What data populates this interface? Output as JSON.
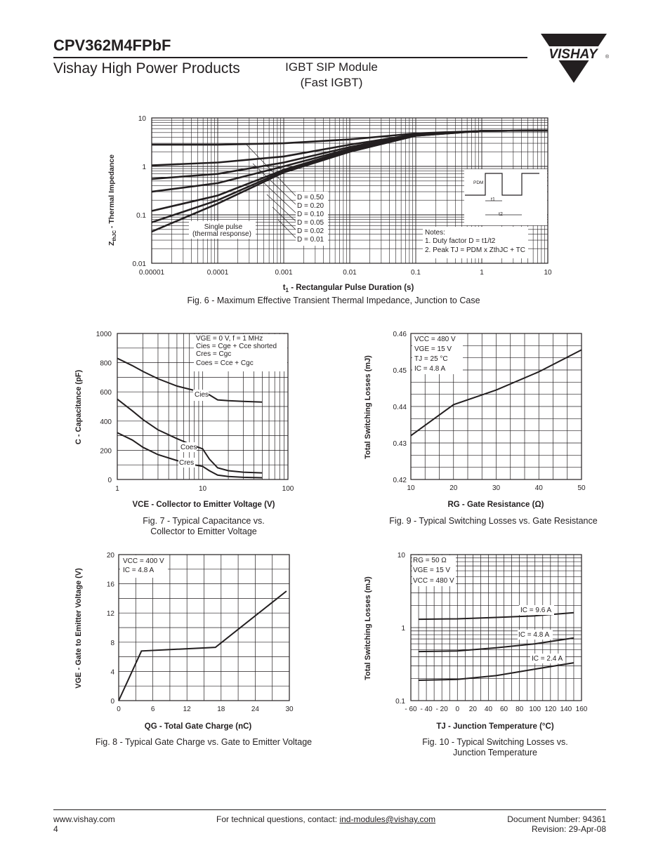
{
  "header": {
    "part_number": "CPV362M4FPbF",
    "company_line": "Vishay High Power Products",
    "module_line1": "IGBT SIP Module",
    "module_line2": "(Fast IGBT)",
    "logo_text": "VISHAY"
  },
  "fig6": {
    "caption": "Fig. 6 - Maximum Effective Transient Thermal Impedance, Junction to Case",
    "xlabel_t": "t",
    "xlabel_sub": "1",
    "xlabel_rest": " - Rectangular Pulse Duration (s)",
    "ylabel_z": "Z",
    "ylabel_sub": "thJC",
    "ylabel_rest": " - Thermal Impedance",
    "x_ticks": [
      "0.00001",
      "0.0001",
      "0.001",
      "0.01",
      "0.1",
      "1",
      "10"
    ],
    "y_ticks": [
      "0.01",
      "0.1",
      "1",
      "10"
    ],
    "duty_labels": [
      "D = 0.50",
      "D = 0.20",
      "D = 0.10",
      "D = 0.05",
      "D = 0.02",
      "D = 0.01"
    ],
    "single_pulse_1": "Single pulse",
    "single_pulse_2": "(thermal response)",
    "notes_title": "Notes:",
    "note1": "1. Duty factor D = t1/t2",
    "note2": "2. Peak TJ = PDM x ZthJC + TC",
    "inset_pdm": "PDM",
    "inset_t1": "t1",
    "inset_t2": "t2"
  },
  "fig7": {
    "caption_line1": "Fig. 7 - Typical Capacitance vs.",
    "caption_line2": "Collector to Emitter Voltage",
    "xlabel": "VCE - Collector to Emitter Voltage (V)",
    "ylabel": "C - Capacitance (pF)",
    "x_ticks": [
      "1",
      "10",
      "100"
    ],
    "y_ticks": [
      "0",
      "200",
      "400",
      "600",
      "800",
      "1000"
    ],
    "cond1": "VGE = 0 V, f = 1 MHz",
    "cond2": "Cies = Cge + Cce  shorted",
    "cond3": "Cres = Cgc",
    "cond4": "Coes = Cce + Cgc",
    "lbl_cies": "Cies",
    "lbl_coes": "Coes",
    "lbl_cres": "Cres"
  },
  "fig9": {
    "caption": "Fig. 9 - Typical Switching Losses vs. Gate Resistance",
    "xlabel": "RG - Gate Resistance (Ω)",
    "ylabel": "Total Switching Losses (mJ)",
    "x_ticks": [
      "10",
      "20",
      "30",
      "40",
      "50"
    ],
    "y_ticks": [
      "0.42",
      "0.43",
      "0.44",
      "0.45",
      "0.46"
    ],
    "cond1": "VCC = 480 V",
    "cond2": "VGE = 15 V",
    "cond3": "TJ = 25 °C",
    "cond4": "IC = 4.8 A"
  },
  "fig8": {
    "caption": "Fig. 8 - Typical Gate Charge vs. Gate to Emitter Voltage",
    "xlabel": "QG - Total Gate Charge (nC)",
    "ylabel": "VGE - Gate to Emitter Voltage (V)",
    "x_ticks": [
      "0",
      "6",
      "12",
      "18",
      "24",
      "30"
    ],
    "y_ticks": [
      "0",
      "4",
      "8",
      "12",
      "16",
      "20"
    ],
    "cond1": "VCC = 400 V",
    "cond2": "IC = 4.8 A"
  },
  "fig10": {
    "caption_line1": "Fig. 10 - Typical Switching Losses vs.",
    "caption_line2": "Junction Temperature",
    "xlabel": "TJ - Junction Temperature (°C)",
    "ylabel": "Total Switching Losses (mJ)",
    "x_ticks": [
      "- 60",
      "- 40",
      "- 20",
      "0",
      "20",
      "40",
      "60",
      "80",
      "100",
      "120",
      "140",
      "160"
    ],
    "y_ticks": [
      "0.1",
      "1",
      "10"
    ],
    "cond1": "RG = 50 Ω",
    "cond2": "VGE = 15 V",
    "cond3": "VCC = 480 V",
    "lbl_96": "IC = 9.6 A",
    "lbl_48": "IC = 4.8 A",
    "lbl_24": "IC = 2.4 A"
  },
  "footer": {
    "website": "www.vishay.com",
    "page": "4",
    "contact_prefix": "For technical questions, contact: ",
    "contact_email": "ind-modules@vishay.com",
    "doc_number": "Document Number: 94361",
    "revision": "Revision: 29-Apr-08"
  },
  "chart_data": [
    {
      "type": "line",
      "title": "Fig. 6 - Maximum Effective Transient Thermal Impedance, Junction to Case",
      "xlabel": "t1 - Rectangular Pulse Duration (s)",
      "ylabel": "ZthJC - Thermal Impedance",
      "xscale": "log",
      "yscale": "log",
      "xlim": [
        1e-05,
        10
      ],
      "ylim": [
        0.01,
        10
      ],
      "grid": true,
      "series": [
        {
          "name": "D = 0.50",
          "x": [
            1e-05,
            0.0001,
            0.001,
            0.01,
            0.1,
            1,
            10
          ],
          "y": [
            2.8,
            2.8,
            3.0,
            3.6,
            4.8,
            5.4,
            5.5
          ]
        },
        {
          "name": "D = 0.20",
          "x": [
            1e-05,
            0.0001,
            0.001,
            0.01,
            0.1,
            1,
            10
          ],
          "y": [
            1.05,
            1.2,
            1.6,
            2.8,
            4.6,
            5.4,
            5.5
          ]
        },
        {
          "name": "D = 0.10",
          "x": [
            1e-05,
            0.0001,
            0.001,
            0.01,
            0.1,
            1,
            10
          ],
          "y": [
            0.55,
            0.7,
            1.2,
            2.5,
            4.5,
            5.4,
            5.5
          ]
        },
        {
          "name": "D = 0.05",
          "x": [
            1e-05,
            0.0001,
            0.001,
            0.01,
            0.1,
            1,
            10
          ],
          "y": [
            0.3,
            0.45,
            1.0,
            2.3,
            4.4,
            5.4,
            5.5
          ]
        },
        {
          "name": "D = 0.02",
          "x": [
            1e-05,
            0.0001,
            0.001,
            0.01,
            0.1,
            1,
            10
          ],
          "y": [
            0.12,
            0.25,
            0.85,
            2.2,
            4.4,
            5.4,
            5.5
          ]
        },
        {
          "name": "D = 0.01",
          "x": [
            1e-05,
            0.0001,
            0.001,
            0.01,
            0.1,
            1,
            10
          ],
          "y": [
            0.07,
            0.2,
            0.8,
            2.1,
            4.3,
            5.4,
            5.5
          ]
        },
        {
          "name": "Single pulse (thermal response)",
          "x": [
            1e-05,
            0.0001,
            0.001,
            0.01,
            0.1,
            1,
            10
          ],
          "y": [
            0.045,
            0.17,
            0.75,
            2.0,
            4.3,
            5.4,
            5.5
          ]
        }
      ]
    },
    {
      "type": "line",
      "title": "Fig. 7 - Typical Capacitance vs. Collector to Emitter Voltage",
      "xlabel": "VCE - Collector to Emitter Voltage (V)",
      "ylabel": "C - Capacitance (pF)",
      "xscale": "log",
      "xlim": [
        1,
        100
      ],
      "ylim": [
        0,
        1000
      ],
      "grid": true,
      "series": [
        {
          "name": "Cies",
          "x": [
            1,
            1.5,
            2,
            3,
            5,
            8,
            10,
            12,
            15,
            20,
            30,
            50
          ],
          "y": [
            830,
            780,
            740,
            690,
            640,
            610,
            600,
            580,
            545,
            540,
            535,
            530
          ]
        },
        {
          "name": "Coes",
          "x": [
            1,
            1.5,
            2,
            3,
            5,
            8,
            10,
            12,
            15,
            20,
            30,
            50
          ],
          "y": [
            550,
            470,
            410,
            340,
            280,
            230,
            210,
            140,
            80,
            60,
            50,
            45
          ]
        },
        {
          "name": "Cres",
          "x": [
            1,
            1.5,
            2,
            3,
            5,
            8,
            10,
            12,
            15,
            20,
            30,
            50
          ],
          "y": [
            320,
            270,
            220,
            170,
            130,
            100,
            90,
            60,
            30,
            20,
            15,
            12
          ]
        }
      ]
    },
    {
      "type": "line",
      "title": "Fig. 9 - Typical Switching Losses vs. Gate Resistance",
      "xlabel": "RG - Gate Resistance (Ω)",
      "ylabel": "Total Switching Losses (mJ)",
      "xlim": [
        10,
        50
      ],
      "ylim": [
        0.42,
        0.46
      ],
      "grid": true,
      "series": [
        {
          "name": "",
          "x": [
            10,
            20,
            30,
            40,
            50
          ],
          "y": [
            0.432,
            0.4405,
            0.4445,
            0.4495,
            0.4555
          ]
        }
      ]
    },
    {
      "type": "line",
      "title": "Fig. 8 - Typical Gate Charge vs. Gate to Emitter Voltage",
      "xlabel": "QG - Total Gate Charge (nC)",
      "ylabel": "VGE - Gate to Emitter Voltage (V)",
      "xlim": [
        0,
        30
      ],
      "ylim": [
        0,
        20
      ],
      "grid": true,
      "series": [
        {
          "name": "",
          "x": [
            0,
            4,
            17,
            29.5
          ],
          "y": [
            0,
            6.8,
            7.3,
            15
          ]
        }
      ]
    },
    {
      "type": "line",
      "title": "Fig. 10 - Typical Switching Losses vs. Junction Temperature",
      "xlabel": "TJ - Junction Temperature (°C)",
      "ylabel": "Total Switching Losses (mJ)",
      "xlim": [
        -60,
        160
      ],
      "ylim": [
        0.1,
        10
      ],
      "yscale": "log",
      "grid": true,
      "series": [
        {
          "name": "IC = 9.6 A",
          "x": [
            -50,
            0,
            50,
            100,
            150
          ],
          "y": [
            1.3,
            1.32,
            1.38,
            1.45,
            1.6
          ]
        },
        {
          "name": "IC = 4.8 A",
          "x": [
            -50,
            0,
            50,
            100,
            150
          ],
          "y": [
            0.47,
            0.48,
            0.53,
            0.6,
            0.72
          ]
        },
        {
          "name": "IC = 2.4 A",
          "x": [
            -50,
            0,
            50,
            100,
            150
          ],
          "y": [
            0.19,
            0.195,
            0.22,
            0.27,
            0.33
          ]
        }
      ]
    }
  ]
}
